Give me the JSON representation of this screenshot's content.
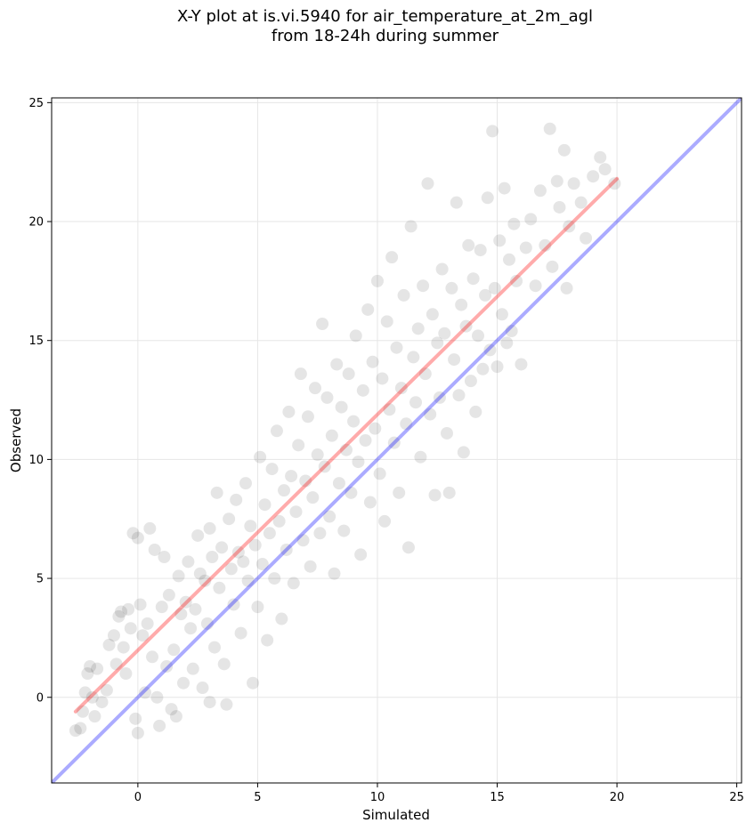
{
  "chart_data": {
    "type": "scatter",
    "title": "X-Y plot at is.vi.5940 for air_temperature_at_2m_agl",
    "subtitle": "from 18-24h during summer",
    "xlabel": "Simulated",
    "ylabel": "Observed",
    "xlim": [
      -3.6,
      25.2
    ],
    "ylim": [
      -3.6,
      25.2
    ],
    "xticks": [
      0,
      5,
      10,
      15,
      20,
      25
    ],
    "yticks": [
      0,
      5,
      10,
      15,
      20,
      25
    ],
    "grid": true,
    "point_color": "#000000",
    "point_alpha": 0.1,
    "lines": [
      {
        "kind": "identity",
        "color": "#0000ff",
        "x": [
          -3.6,
          25.2
        ],
        "y": [
          -3.6,
          25.2
        ]
      },
      {
        "kind": "fit",
        "color": "#ff0000",
        "x": [
          -2.6,
          20.0
        ],
        "y": [
          -0.6,
          21.8
        ]
      }
    ],
    "points": [
      [
        -2.6,
        -1.4
      ],
      [
        -2.4,
        -1.3
      ],
      [
        -2.3,
        -0.6
      ],
      [
        -2.2,
        0.2
      ],
      [
        -2.1,
        1.0
      ],
      [
        -2.0,
        1.3
      ],
      [
        -1.9,
        0.0
      ],
      [
        -1.8,
        -0.8
      ],
      [
        -1.7,
        1.2
      ],
      [
        -1.5,
        -0.2
      ],
      [
        -1.3,
        0.3
      ],
      [
        -1.2,
        2.2
      ],
      [
        -1.0,
        2.6
      ],
      [
        -0.9,
        1.4
      ],
      [
        -0.8,
        3.4
      ],
      [
        -0.7,
        3.6
      ],
      [
        -0.6,
        2.1
      ],
      [
        -0.5,
        1.0
      ],
      [
        -0.4,
        3.7
      ],
      [
        -0.3,
        2.9
      ],
      [
        -0.2,
        6.9
      ],
      [
        -0.1,
        -0.9
      ],
      [
        0.0,
        -1.5
      ],
      [
        0.0,
        6.7
      ],
      [
        0.1,
        3.9
      ],
      [
        0.2,
        2.6
      ],
      [
        0.3,
        0.2
      ],
      [
        0.4,
        3.1
      ],
      [
        0.5,
        7.1
      ],
      [
        0.6,
        1.7
      ],
      [
        0.7,
        6.2
      ],
      [
        0.8,
        0.0
      ],
      [
        0.9,
        -1.2
      ],
      [
        1.0,
        3.8
      ],
      [
        1.1,
        5.9
      ],
      [
        1.2,
        1.3
      ],
      [
        1.3,
        4.3
      ],
      [
        1.4,
        -0.5
      ],
      [
        1.5,
        2.0
      ],
      [
        1.6,
        -0.8
      ],
      [
        1.7,
        5.1
      ],
      [
        1.8,
        3.5
      ],
      [
        1.9,
        0.6
      ],
      [
        2.0,
        4.0
      ],
      [
        2.1,
        5.7
      ],
      [
        2.2,
        2.9
      ],
      [
        2.3,
        1.2
      ],
      [
        2.4,
        3.7
      ],
      [
        2.5,
        6.8
      ],
      [
        2.6,
        5.2
      ],
      [
        2.7,
        0.4
      ],
      [
        2.8,
        4.9
      ],
      [
        2.9,
        3.1
      ],
      [
        3.0,
        7.1
      ],
      [
        3.0,
        -0.2
      ],
      [
        3.1,
        5.9
      ],
      [
        3.2,
        2.1
      ],
      [
        3.3,
        8.6
      ],
      [
        3.4,
        4.6
      ],
      [
        3.5,
        6.3
      ],
      [
        3.6,
        1.4
      ],
      [
        3.7,
        -0.3
      ],
      [
        3.8,
        7.5
      ],
      [
        3.9,
        5.4
      ],
      [
        4.0,
        3.9
      ],
      [
        4.1,
        8.3
      ],
      [
        4.2,
        6.1
      ],
      [
        4.3,
        2.7
      ],
      [
        4.4,
        5.7
      ],
      [
        4.5,
        9.0
      ],
      [
        4.6,
        4.9
      ],
      [
        4.7,
        7.2
      ],
      [
        4.8,
        0.6
      ],
      [
        4.9,
        6.4
      ],
      [
        5.0,
        3.8
      ],
      [
        5.1,
        10.1
      ],
      [
        5.2,
        5.6
      ],
      [
        5.3,
        8.1
      ],
      [
        5.4,
        2.4
      ],
      [
        5.5,
        6.9
      ],
      [
        5.6,
        9.6
      ],
      [
        5.7,
        5.0
      ],
      [
        5.8,
        11.2
      ],
      [
        5.9,
        7.4
      ],
      [
        6.0,
        3.3
      ],
      [
        6.1,
        8.7
      ],
      [
        6.2,
        6.2
      ],
      [
        6.3,
        12.0
      ],
      [
        6.4,
        9.3
      ],
      [
        6.5,
        4.8
      ],
      [
        6.6,
        7.8
      ],
      [
        6.7,
        10.6
      ],
      [
        6.8,
        13.6
      ],
      [
        6.9,
        6.6
      ],
      [
        7.0,
        9.1
      ],
      [
        7.1,
        11.8
      ],
      [
        7.2,
        5.5
      ],
      [
        7.3,
        8.4
      ],
      [
        7.4,
        13.0
      ],
      [
        7.5,
        10.2
      ],
      [
        7.6,
        6.9
      ],
      [
        7.7,
        15.7
      ],
      [
        7.8,
        9.7
      ],
      [
        7.9,
        12.6
      ],
      [
        8.0,
        7.6
      ],
      [
        8.1,
        11.0
      ],
      [
        8.2,
        5.2
      ],
      [
        8.3,
        14.0
      ],
      [
        8.4,
        9.0
      ],
      [
        8.5,
        12.2
      ],
      [
        8.6,
        7.0
      ],
      [
        8.7,
        10.4
      ],
      [
        8.8,
        13.6
      ],
      [
        8.9,
        8.6
      ],
      [
        9.0,
        11.6
      ],
      [
        9.1,
        15.2
      ],
      [
        9.2,
        9.9
      ],
      [
        9.3,
        6.0
      ],
      [
        9.4,
        12.9
      ],
      [
        9.5,
        10.8
      ],
      [
        9.6,
        16.3
      ],
      [
        9.7,
        8.2
      ],
      [
        9.8,
        14.1
      ],
      [
        9.9,
        11.3
      ],
      [
        10.0,
        17.5
      ],
      [
        10.1,
        9.4
      ],
      [
        10.2,
        13.4
      ],
      [
        10.3,
        7.4
      ],
      [
        10.4,
        15.8
      ],
      [
        10.5,
        12.1
      ],
      [
        10.6,
        18.5
      ],
      [
        10.7,
        10.7
      ],
      [
        10.8,
        14.7
      ],
      [
        10.9,
        8.6
      ],
      [
        11.0,
        13.0
      ],
      [
        11.1,
        16.9
      ],
      [
        11.2,
        11.5
      ],
      [
        11.3,
        6.3
      ],
      [
        11.4,
        19.8
      ],
      [
        11.5,
        14.3
      ],
      [
        11.6,
        12.4
      ],
      [
        11.7,
        15.5
      ],
      [
        11.8,
        10.1
      ],
      [
        11.9,
        17.3
      ],
      [
        12.0,
        13.6
      ],
      [
        12.1,
        21.6
      ],
      [
        12.2,
        11.9
      ],
      [
        12.3,
        16.1
      ],
      [
        12.4,
        8.5
      ],
      [
        12.5,
        14.9
      ],
      [
        12.6,
        12.6
      ],
      [
        12.7,
        18.0
      ],
      [
        12.8,
        15.3
      ],
      [
        12.9,
        11.1
      ],
      [
        13.0,
        8.6
      ],
      [
        13.1,
        17.2
      ],
      [
        13.2,
        14.2
      ],
      [
        13.3,
        20.8
      ],
      [
        13.4,
        12.7
      ],
      [
        13.5,
        16.5
      ],
      [
        13.6,
        10.3
      ],
      [
        13.7,
        15.6
      ],
      [
        13.8,
        19.0
      ],
      [
        13.9,
        13.3
      ],
      [
        14.0,
        17.6
      ],
      [
        14.1,
        12.0
      ],
      [
        14.2,
        15.2
      ],
      [
        14.3,
        18.8
      ],
      [
        14.4,
        13.8
      ],
      [
        14.5,
        16.9
      ],
      [
        14.6,
        21.0
      ],
      [
        14.7,
        14.6
      ],
      [
        14.8,
        23.8
      ],
      [
        14.9,
        17.2
      ],
      [
        15.0,
        13.9
      ],
      [
        15.1,
        19.2
      ],
      [
        15.2,
        16.1
      ],
      [
        15.3,
        21.4
      ],
      [
        15.4,
        14.9
      ],
      [
        15.5,
        18.4
      ],
      [
        15.6,
        15.4
      ],
      [
        15.7,
        19.9
      ],
      [
        15.8,
        17.5
      ],
      [
        16.0,
        14.0
      ],
      [
        16.2,
        18.9
      ],
      [
        16.4,
        20.1
      ],
      [
        16.6,
        17.3
      ],
      [
        16.8,
        21.3
      ],
      [
        17.0,
        19.0
      ],
      [
        17.2,
        23.9
      ],
      [
        17.3,
        18.1
      ],
      [
        17.5,
        21.7
      ],
      [
        17.6,
        20.6
      ],
      [
        17.8,
        23.0
      ],
      [
        17.9,
        17.2
      ],
      [
        18.0,
        19.8
      ],
      [
        18.2,
        21.6
      ],
      [
        18.5,
        20.8
      ],
      [
        18.7,
        19.3
      ],
      [
        19.0,
        21.9
      ],
      [
        19.3,
        22.7
      ],
      [
        19.5,
        22.2
      ],
      [
        19.9,
        21.6
      ]
    ]
  }
}
